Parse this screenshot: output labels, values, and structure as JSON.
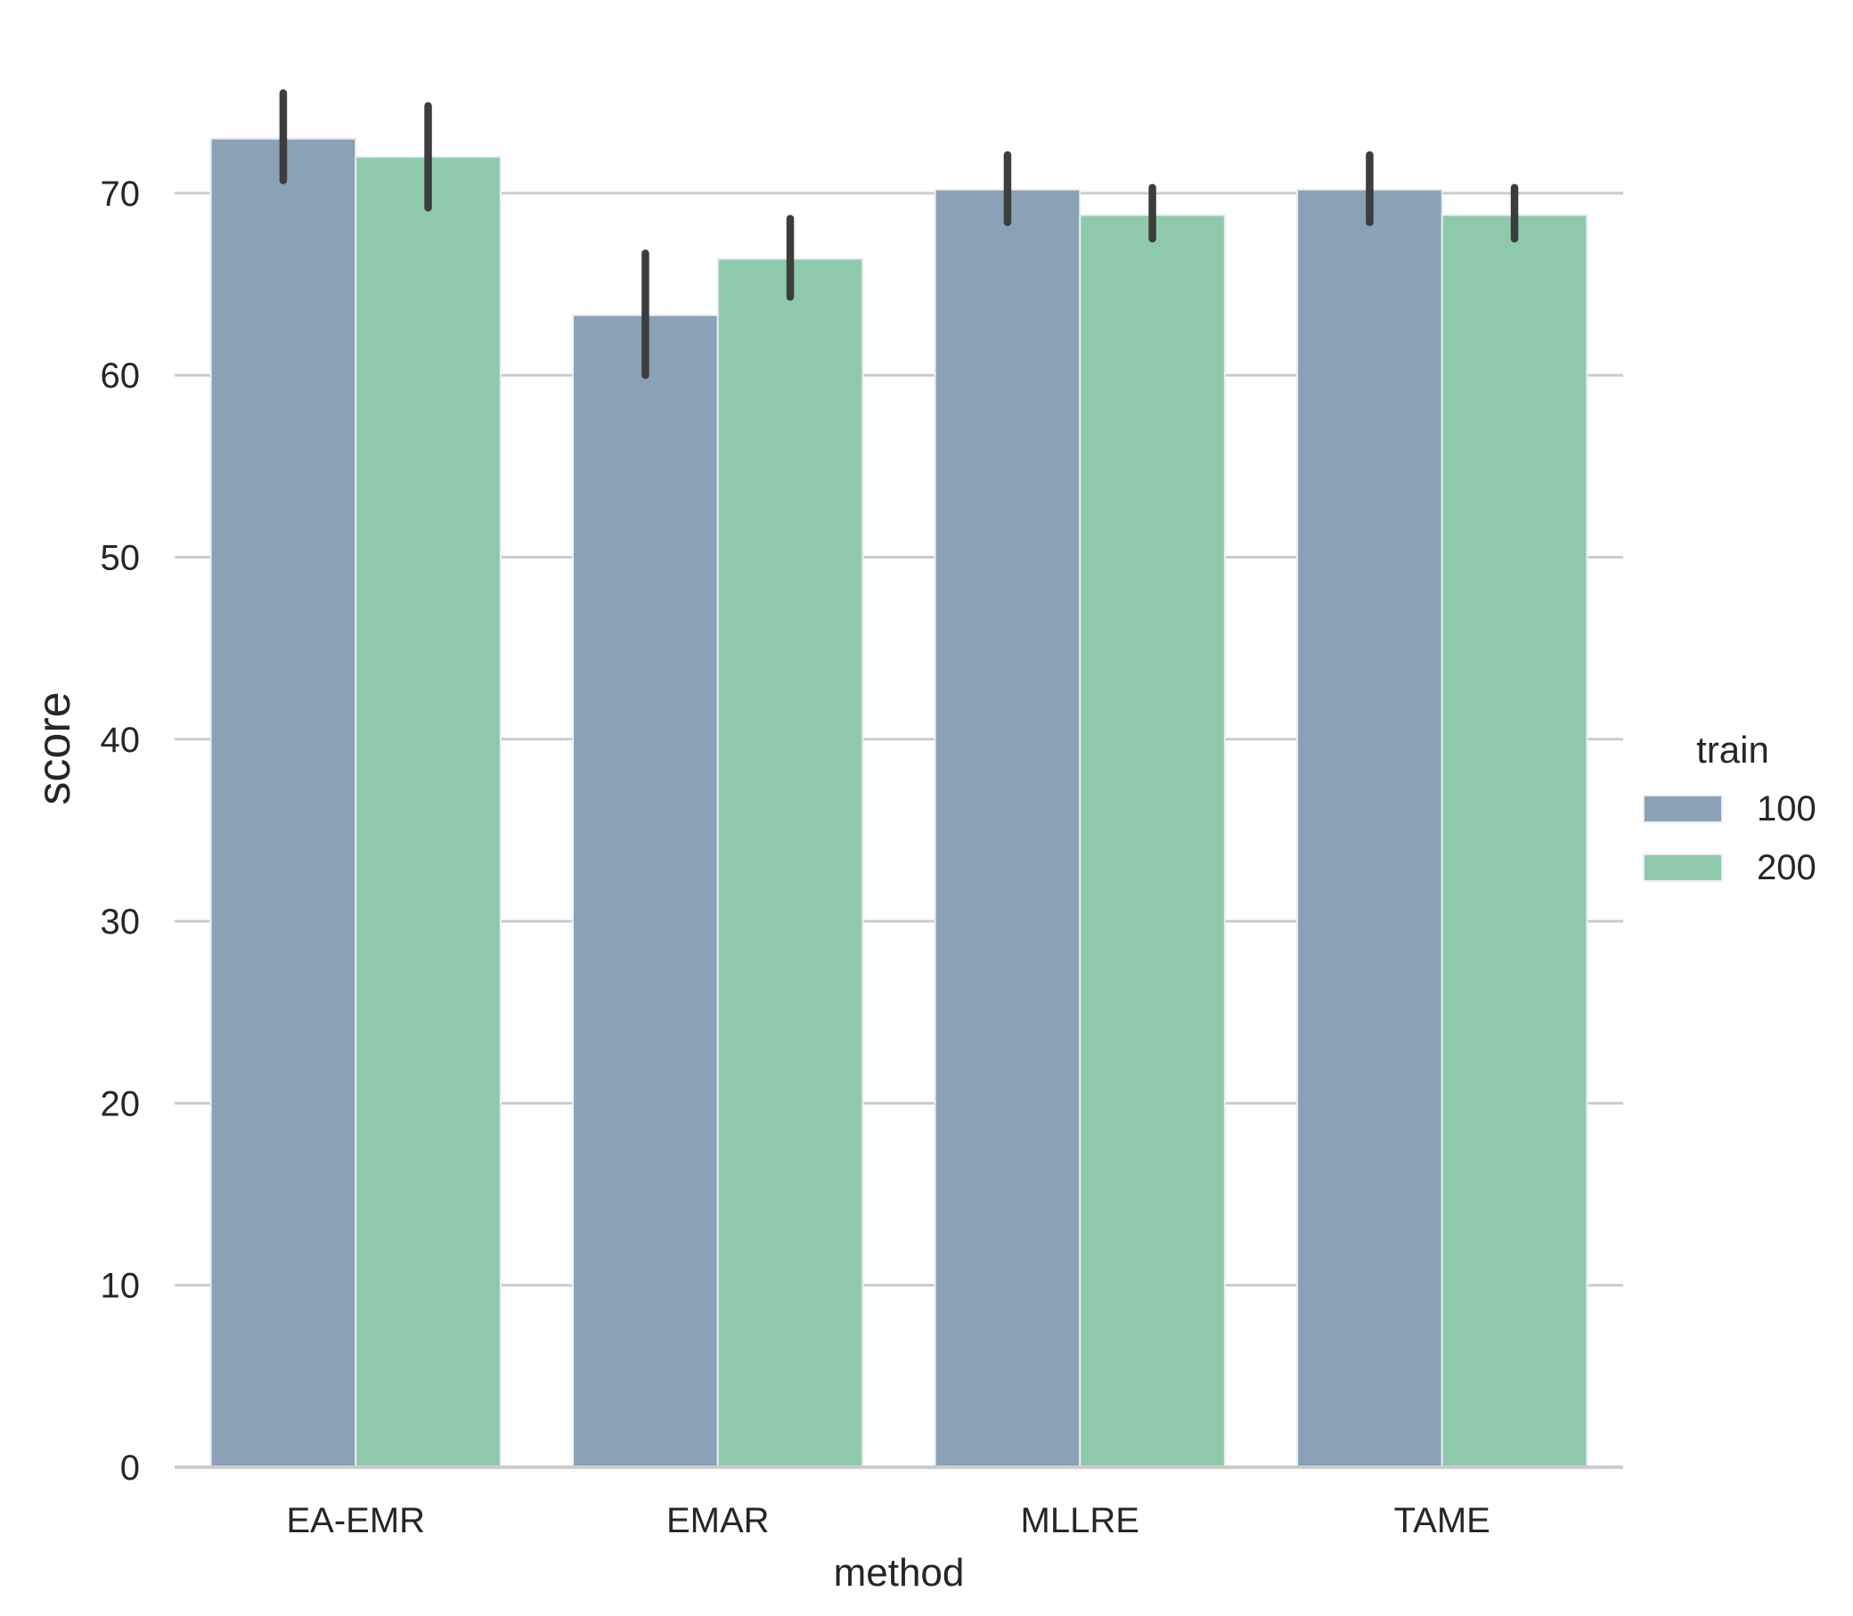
{
  "chart_data": {
    "type": "bar",
    "categories": [
      "EA-EMR",
      "EMAR",
      "MLLRE",
      "TAME"
    ],
    "xlabel": "method",
    "ylabel": "score",
    "ylim": [
      0,
      78
    ],
    "yticks": [
      0,
      10,
      20,
      30,
      40,
      50,
      60,
      70
    ],
    "grid": "horizontal",
    "legend": {
      "title": "train",
      "placement": "right",
      "entries": [
        "100",
        "200"
      ]
    },
    "series": [
      {
        "name": "100",
        "color": "#8aa1b6",
        "values": [
          73.0,
          63.3,
          70.2,
          70.2
        ],
        "error_low": [
          70.7,
          60.0,
          68.4,
          68.4
        ],
        "error_high": [
          75.5,
          66.7,
          72.1,
          72.1
        ]
      },
      {
        "name": "200",
        "color": "#8fc9ac",
        "values": [
          72.0,
          66.4,
          68.8,
          68.8
        ],
        "error_low": [
          69.2,
          64.3,
          67.5,
          67.5
        ],
        "error_high": [
          74.8,
          68.6,
          70.3,
          70.3
        ]
      }
    ],
    "error_bar_color": "#3d3d3d"
  }
}
